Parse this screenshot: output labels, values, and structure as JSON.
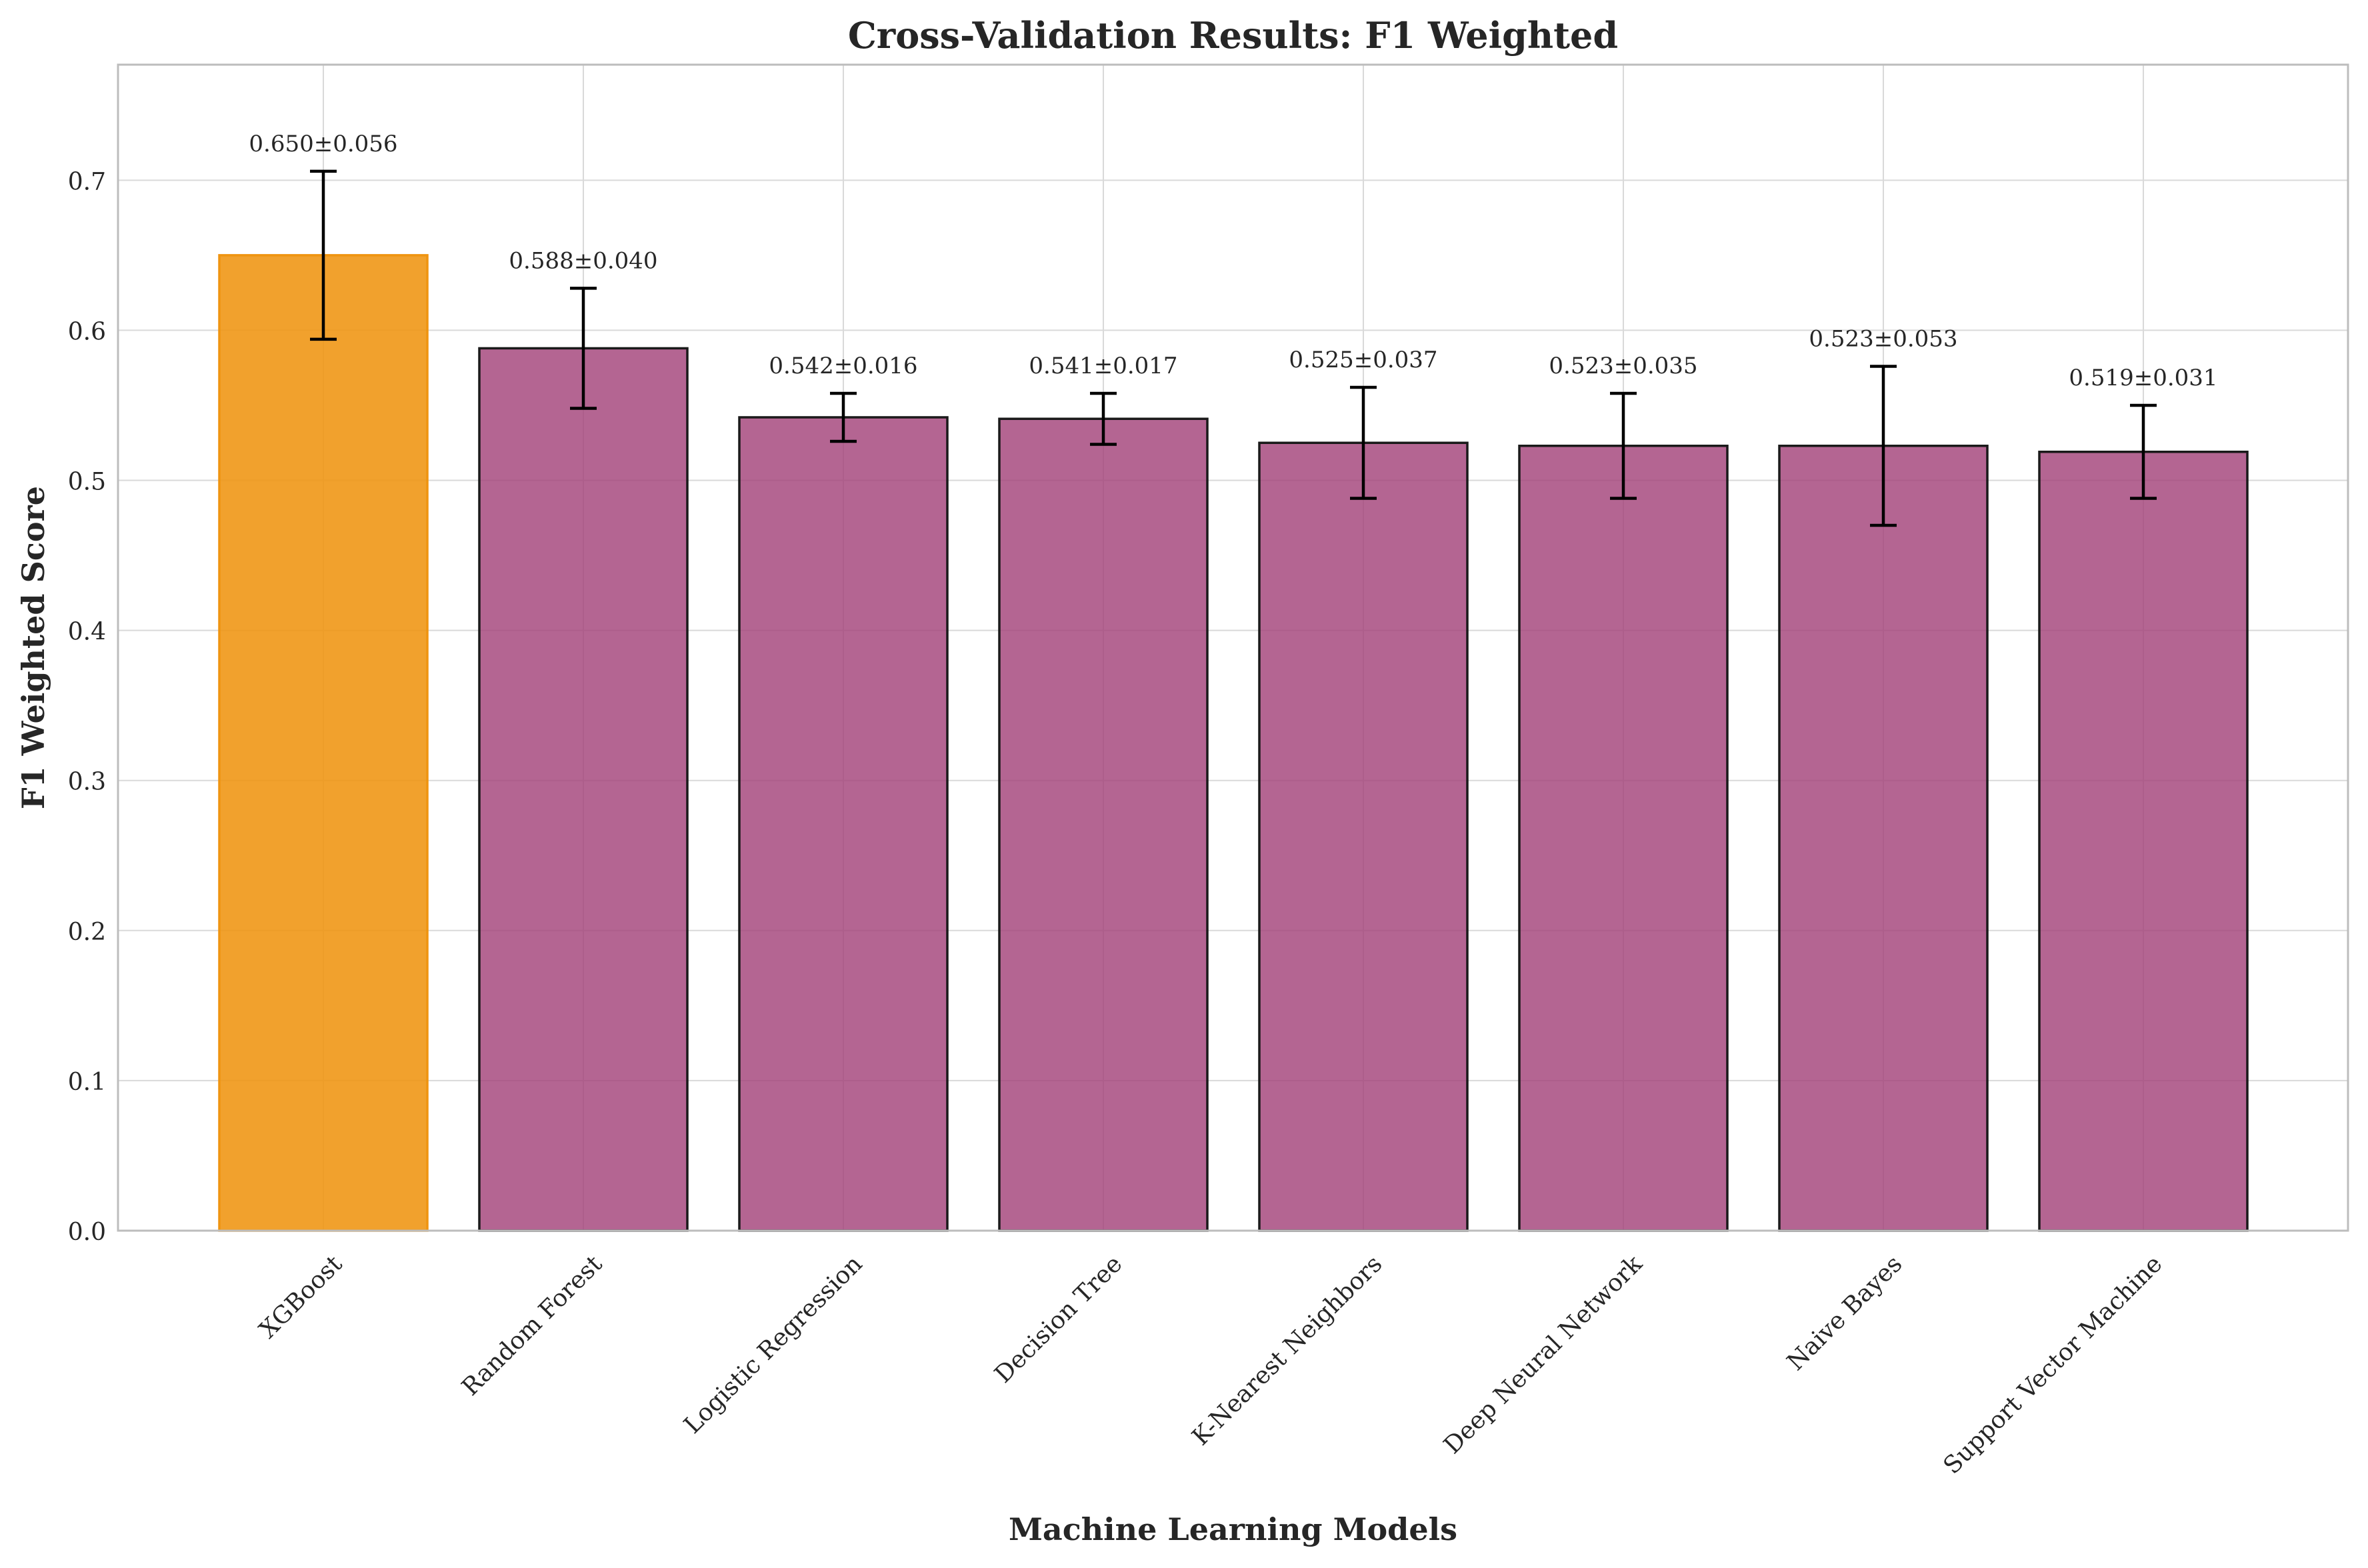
{
  "chart_data": {
    "type": "bar",
    "title": "Cross-Validation Results: F1 Weighted",
    "xlabel": "Machine Learning Models",
    "ylabel": "F1 Weighted Score",
    "ylim": [
      0,
      0.777
    ],
    "yticks": [
      0.0,
      0.1,
      0.2,
      0.3,
      0.4,
      0.5,
      0.6,
      0.7
    ],
    "ytick_labels": [
      "0.0",
      "0.1",
      "0.2",
      "0.3",
      "0.4",
      "0.5",
      "0.6",
      "0.7"
    ],
    "grid": true,
    "categories": [
      "XGBoost",
      "Random Forest",
      "Logistic Regression",
      "Decision Tree",
      "K-Nearest Neighbors",
      "Deep Neural Network",
      "Naive Bayes",
      "Support Vector Machine"
    ],
    "values": [
      0.65,
      0.588,
      0.542,
      0.541,
      0.525,
      0.523,
      0.523,
      0.519
    ],
    "errors": [
      0.056,
      0.04,
      0.016,
      0.017,
      0.037,
      0.035,
      0.053,
      0.031
    ],
    "value_labels": [
      "0.650±0.056",
      "0.588±0.040",
      "0.542±0.016",
      "0.541±0.017",
      "0.525±0.037",
      "0.523±0.035",
      "0.523±0.053",
      "0.519±0.031"
    ],
    "colors": {
      "best": "#ef9410",
      "other": "#a3437a",
      "edge": "#1a1a1a",
      "grid": "#d9d9d9",
      "axis": "#bdbdbd",
      "text": "#262626"
    }
  }
}
